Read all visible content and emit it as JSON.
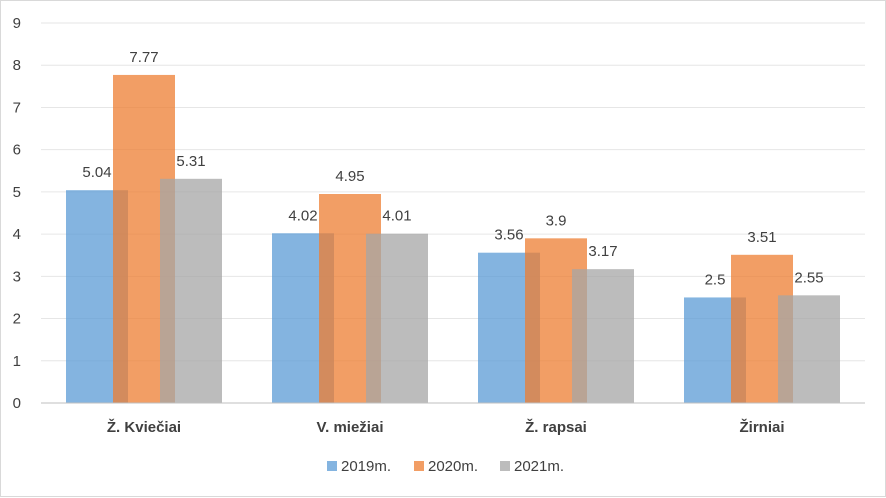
{
  "chart_data": {
    "type": "bar",
    "categories": [
      "Ž. Kviečiai",
      "V. miežiai",
      "Ž. rapsai",
      "Žirniai"
    ],
    "series": [
      {
        "name": "2019m.",
        "color": "#5b9bd5",
        "values": [
          5.04,
          4.02,
          3.56,
          2.5
        ],
        "labels": [
          "5.04",
          "4.02",
          "3.56",
          "2.5"
        ]
      },
      {
        "name": "2020m.",
        "color": "#ed7d31",
        "values": [
          7.77,
          4.95,
          3.9,
          3.51
        ],
        "labels": [
          "7.77",
          "4.95",
          "3.9",
          "3.51"
        ]
      },
      {
        "name": "2021m.",
        "color": "#a5a5a5",
        "values": [
          5.31,
          4.01,
          3.17,
          2.55
        ],
        "labels": [
          "5.31",
          "4.01",
          "3.17",
          "2.55"
        ]
      }
    ],
    "yticks": [
      "0",
      "1",
      "2",
      "3",
      "4",
      "5",
      "6",
      "7",
      "8",
      "9"
    ],
    "ylim": [
      0,
      9
    ],
    "grid": true,
    "legend_position": "bottom"
  }
}
